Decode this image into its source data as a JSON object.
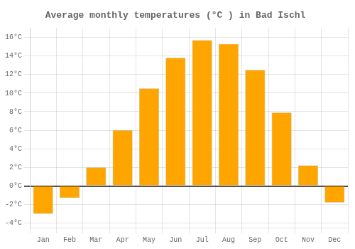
{
  "chart_data": {
    "type": "bar",
    "title": "Average monthly temperatures (°C ) in Bad Ischl",
    "categories": [
      "Jan",
      "Feb",
      "Mar",
      "Apr",
      "May",
      "Jun",
      "Jul",
      "Aug",
      "Sep",
      "Oct",
      "Nov",
      "Dec"
    ],
    "values": [
      -3.0,
      -1.3,
      2.0,
      6.0,
      10.5,
      13.8,
      15.7,
      15.3,
      12.5,
      7.9,
      2.2,
      -1.8
    ],
    "color": "#FFA500",
    "ylim": [
      -4.5,
      17
    ],
    "yticks": [
      {
        "value": -4,
        "label": "-4°C"
      },
      {
        "value": -2,
        "label": "-2°C"
      },
      {
        "value": 0,
        "label": "0°C"
      },
      {
        "value": 2,
        "label": "2°C"
      },
      {
        "value": 4,
        "label": "4°C"
      },
      {
        "value": 6,
        "label": "6°C"
      },
      {
        "value": 8,
        "label": "8°C"
      },
      {
        "value": 10,
        "label": "10°C"
      },
      {
        "value": 12,
        "label": "12°C"
      },
      {
        "value": 14,
        "label": "14°C"
      },
      {
        "value": 16,
        "label": "16°C"
      }
    ],
    "grid": true
  }
}
